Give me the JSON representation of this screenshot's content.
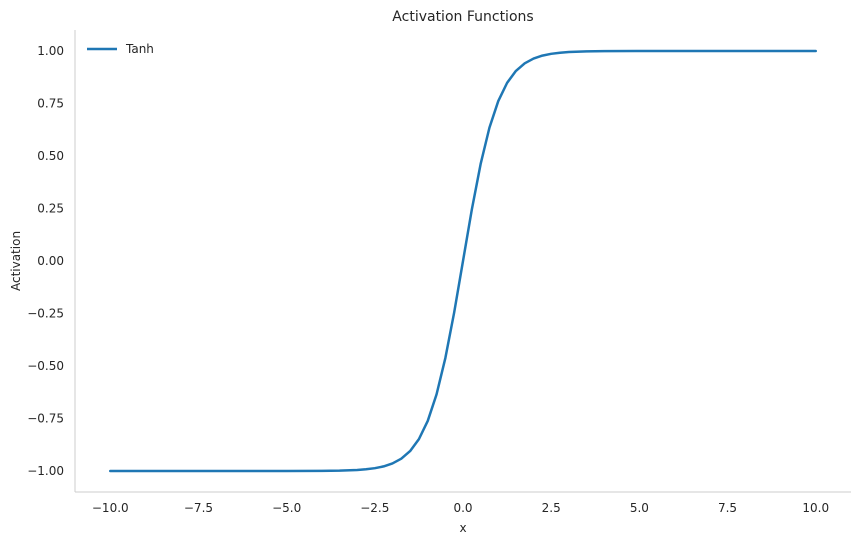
{
  "chart_data": {
    "type": "line",
    "title": "Activation Functions",
    "xlabel": "x",
    "ylabel": "Activation",
    "xlim": [
      -11.0,
      11.0
    ],
    "ylim": [
      -1.1,
      1.1
    ],
    "x_ticks": [
      -10.0,
      -7.5,
      -5.0,
      -2.5,
      0.0,
      2.5,
      5.0,
      7.5,
      10.0
    ],
    "x_tick_labels": [
      "−10.0",
      "−7.5",
      "−5.0",
      "−2.5",
      "0.0",
      "2.5",
      "5.0",
      "7.5",
      "10.0"
    ],
    "y_ticks": [
      -1.0,
      -0.75,
      -0.5,
      -0.25,
      0.0,
      0.25,
      0.5,
      0.75,
      1.0
    ],
    "y_tick_labels": [
      "−1.00",
      "−0.75",
      "−0.50",
      "−0.25",
      "0.00",
      "0.25",
      "0.50",
      "0.75",
      "1.00"
    ],
    "grid": false,
    "legend": {
      "position": "upper-left"
    },
    "series": [
      {
        "name": "Tanh",
        "color": "#1f77b4",
        "x": [
          -10.0,
          -9.0,
          -8.0,
          -7.0,
          -6.0,
          -5.0,
          -4.0,
          -3.5,
          -3.0,
          -2.75,
          -2.5,
          -2.25,
          -2.0,
          -1.75,
          -1.5,
          -1.25,
          -1.0,
          -0.75,
          -0.5,
          -0.25,
          0.0,
          0.25,
          0.5,
          0.75,
          1.0,
          1.25,
          1.5,
          1.75,
          2.0,
          2.25,
          2.5,
          2.75,
          3.0,
          3.5,
          4.0,
          5.0,
          6.0,
          7.0,
          8.0,
          9.0,
          10.0
        ],
        "y": [
          -1.0,
          -1.0,
          -1.0,
          -1.0,
          -1.0,
          -0.9999,
          -0.9993,
          -0.9982,
          -0.9951,
          -0.9918,
          -0.9866,
          -0.978,
          -0.964,
          -0.9414,
          -0.9051,
          -0.8483,
          -0.7616,
          -0.6351,
          -0.4621,
          -0.2449,
          0.0,
          0.2449,
          0.4621,
          0.6351,
          0.7616,
          0.8483,
          0.9051,
          0.9414,
          0.964,
          0.978,
          0.9866,
          0.9918,
          0.9951,
          0.9982,
          0.9993,
          0.9999,
          1.0,
          1.0,
          1.0,
          1.0,
          1.0
        ]
      }
    ]
  }
}
